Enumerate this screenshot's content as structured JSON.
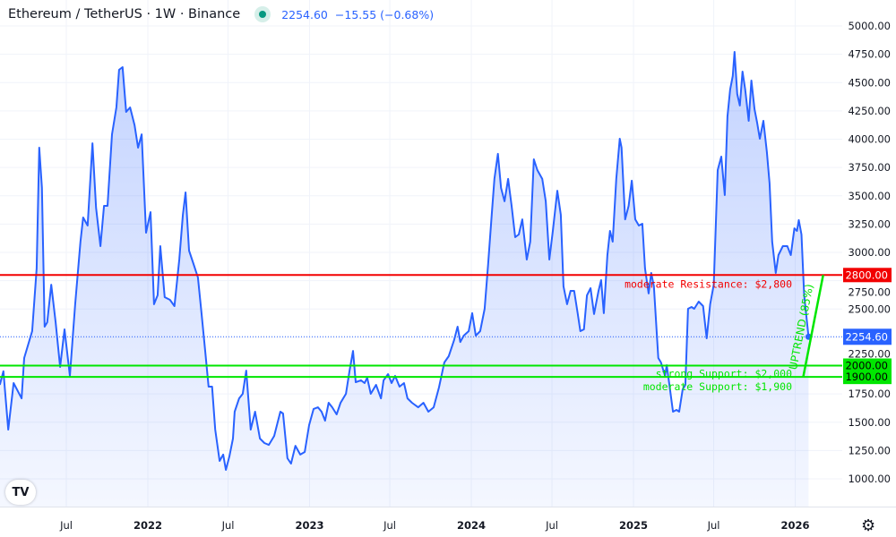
{
  "header": {
    "symbol_title": "Ethereum / TetherUS · 1W · Binance",
    "market_status": "open",
    "last_price": "2254.60",
    "change": "−15.55",
    "change_pct": "(−0.68%)"
  },
  "logo_text": "TV",
  "settings_icon": "gear-icon",
  "colors": {
    "line": "#2962ff",
    "resistance": "#f20000",
    "support": "#00e600",
    "trend": "#00e600",
    "price_label": "#2962ff"
  },
  "chart_data": {
    "type": "area",
    "y_axis": {
      "min": 1000,
      "max": 5000,
      "ticks": [
        "1000.00",
        "1250.00",
        "1500.00",
        "1750.00",
        "2000.00",
        "2250.00",
        "2500.00",
        "2750.00",
        "3000.00",
        "3250.00",
        "3500.00",
        "3750.00",
        "4000.00",
        "4250.00",
        "4500.00",
        "4750.00",
        "5000.00"
      ]
    },
    "x_axis": {
      "ticks": [
        {
          "label": "Jul",
          "date": "2021-07-01"
        },
        {
          "label": "2022",
          "date": "2022-01-01"
        },
        {
          "label": "Jul",
          "date": "2022-07-01"
        },
        {
          "label": "2023",
          "date": "2023-01-01"
        },
        {
          "label": "Jul",
          "date": "2023-07-01"
        },
        {
          "label": "2024",
          "date": "2024-01-01"
        },
        {
          "label": "Jul",
          "date": "2024-07-01"
        },
        {
          "label": "2025",
          "date": "2025-01-01"
        },
        {
          "label": "Jul",
          "date": "2025-07-01"
        },
        {
          "label": "2026",
          "date": "2026-01-01"
        }
      ]
    },
    "grid": true,
    "series": [
      {
        "points": [
          [
            "2021-02-01",
            1830
          ],
          [
            "2021-02-09",
            1950
          ],
          [
            "2021-02-20",
            1435
          ],
          [
            "2021-03-04",
            1846
          ],
          [
            "2021-03-22",
            1711
          ],
          [
            "2021-03-28",
            2067
          ],
          [
            "2021-04-15",
            2304
          ],
          [
            "2021-04-25",
            2858
          ],
          [
            "2021-05-01",
            3925
          ],
          [
            "2021-05-07",
            3569
          ],
          [
            "2021-05-13",
            2344
          ],
          [
            "2021-05-19",
            2383
          ],
          [
            "2021-05-28",
            2715
          ],
          [
            "2021-06-07",
            2383
          ],
          [
            "2021-06-17",
            1988
          ],
          [
            "2021-06-27",
            2320
          ],
          [
            "2021-07-09",
            1909
          ],
          [
            "2021-07-21",
            2542
          ],
          [
            "2021-08-02",
            3095
          ],
          [
            "2021-08-08",
            3308
          ],
          [
            "2021-08-18",
            3237
          ],
          [
            "2021-08-29",
            3964
          ],
          [
            "2021-09-06",
            3395
          ],
          [
            "2021-09-16",
            3055
          ],
          [
            "2021-09-24",
            3411
          ],
          [
            "2021-10-02",
            3411
          ],
          [
            "2021-10-12",
            4043
          ],
          [
            "2021-10-22",
            4281
          ],
          [
            "2021-10-28",
            4613
          ],
          [
            "2021-11-05",
            4636
          ],
          [
            "2021-11-13",
            4241
          ],
          [
            "2021-11-22",
            4281
          ],
          [
            "2021-12-02",
            4123
          ],
          [
            "2021-12-10",
            3925
          ],
          [
            "2021-12-18",
            4043
          ],
          [
            "2021-12-28",
            3174
          ],
          [
            "2022-01-07",
            3356
          ],
          [
            "2022-01-15",
            2542
          ],
          [
            "2022-01-23",
            2621
          ],
          [
            "2022-01-29",
            3055
          ],
          [
            "2022-02-08",
            2605
          ],
          [
            "2022-02-20",
            2581
          ],
          [
            "2022-03-02",
            2526
          ],
          [
            "2022-03-13",
            2937
          ],
          [
            "2022-03-21",
            3332
          ],
          [
            "2022-03-27",
            3530
          ],
          [
            "2022-04-04",
            3016
          ],
          [
            "2022-04-14",
            2897
          ],
          [
            "2022-04-24",
            2779
          ],
          [
            "2022-05-02",
            2463
          ],
          [
            "2022-05-10",
            2146
          ],
          [
            "2022-05-18",
            1814
          ],
          [
            "2022-05-26",
            1814
          ],
          [
            "2022-06-02",
            1435
          ],
          [
            "2022-06-12",
            1158
          ],
          [
            "2022-06-20",
            1214
          ],
          [
            "2022-06-26",
            1079
          ],
          [
            "2022-07-04",
            1198
          ],
          [
            "2022-07-12",
            1356
          ],
          [
            "2022-07-16",
            1593
          ],
          [
            "2022-07-26",
            1711
          ],
          [
            "2022-08-03",
            1751
          ],
          [
            "2022-08-11",
            1956
          ],
          [
            "2022-08-21",
            1435
          ],
          [
            "2022-08-31",
            1593
          ],
          [
            "2022-09-11",
            1356
          ],
          [
            "2022-09-21",
            1316
          ],
          [
            "2022-10-01",
            1300
          ],
          [
            "2022-10-13",
            1379
          ],
          [
            "2022-10-27",
            1593
          ],
          [
            "2022-11-02",
            1577
          ],
          [
            "2022-11-12",
            1182
          ],
          [
            "2022-11-20",
            1134
          ],
          [
            "2022-11-30",
            1292
          ],
          [
            "2022-12-11",
            1214
          ],
          [
            "2022-12-21",
            1237
          ],
          [
            "2022-12-31",
            1474
          ],
          [
            "2023-01-10",
            1617
          ],
          [
            "2023-01-20",
            1632
          ],
          [
            "2023-01-28",
            1593
          ],
          [
            "2023-02-05",
            1514
          ],
          [
            "2023-02-13",
            1672
          ],
          [
            "2023-02-21",
            1632
          ],
          [
            "2023-03-03",
            1569
          ],
          [
            "2023-03-12",
            1672
          ],
          [
            "2023-03-24",
            1751
          ],
          [
            "2023-04-01",
            1949
          ],
          [
            "2023-04-09",
            2130
          ],
          [
            "2023-04-15",
            1854
          ],
          [
            "2023-04-27",
            1870
          ],
          [
            "2023-05-05",
            1846
          ],
          [
            "2023-05-11",
            1893
          ],
          [
            "2023-05-19",
            1751
          ],
          [
            "2023-05-31",
            1830
          ],
          [
            "2023-06-11",
            1711
          ],
          [
            "2023-06-17",
            1870
          ],
          [
            "2023-06-27",
            1925
          ],
          [
            "2023-07-05",
            1846
          ],
          [
            "2023-07-13",
            1909
          ],
          [
            "2023-07-23",
            1814
          ],
          [
            "2023-08-02",
            1846
          ],
          [
            "2023-08-10",
            1711
          ],
          [
            "2023-08-20",
            1672
          ],
          [
            "2023-09-03",
            1632
          ],
          [
            "2023-09-15",
            1672
          ],
          [
            "2023-09-26",
            1593
          ],
          [
            "2023-10-08",
            1632
          ],
          [
            "2023-10-20",
            1806
          ],
          [
            "2023-11-01",
            2028
          ],
          [
            "2023-11-11",
            2083
          ],
          [
            "2023-11-23",
            2225
          ],
          [
            "2023-12-01",
            2344
          ],
          [
            "2023-12-07",
            2209
          ],
          [
            "2023-12-15",
            2265
          ],
          [
            "2023-12-26",
            2304
          ],
          [
            "2024-01-03",
            2463
          ],
          [
            "2024-01-11",
            2265
          ],
          [
            "2024-01-21",
            2304
          ],
          [
            "2024-01-31",
            2502
          ],
          [
            "2024-02-08",
            2897
          ],
          [
            "2024-02-16",
            3332
          ],
          [
            "2024-02-22",
            3649
          ],
          [
            "2024-03-01",
            3870
          ],
          [
            "2024-03-08",
            3569
          ],
          [
            "2024-03-16",
            3451
          ],
          [
            "2024-03-24",
            3649
          ],
          [
            "2024-04-01",
            3411
          ],
          [
            "2024-04-09",
            3134
          ],
          [
            "2024-04-17",
            3158
          ],
          [
            "2024-04-25",
            3292
          ],
          [
            "2024-05-05",
            2937
          ],
          [
            "2024-05-13",
            3095
          ],
          [
            "2024-05-21",
            3822
          ],
          [
            "2024-05-29",
            3727
          ],
          [
            "2024-06-09",
            3649
          ],
          [
            "2024-06-17",
            3451
          ],
          [
            "2024-06-25",
            2937
          ],
          [
            "2024-07-03",
            3190
          ],
          [
            "2024-07-13",
            3545
          ],
          [
            "2024-07-21",
            3332
          ],
          [
            "2024-07-27",
            2700
          ],
          [
            "2024-08-04",
            2542
          ],
          [
            "2024-08-12",
            2660
          ],
          [
            "2024-08-20",
            2660
          ],
          [
            "2024-08-28",
            2463
          ],
          [
            "2024-09-03",
            2304
          ],
          [
            "2024-09-11",
            2320
          ],
          [
            "2024-09-18",
            2621
          ],
          [
            "2024-09-26",
            2684
          ],
          [
            "2024-10-04",
            2455
          ],
          [
            "2024-10-14",
            2660
          ],
          [
            "2024-10-20",
            2755
          ],
          [
            "2024-10-26",
            2463
          ],
          [
            "2024-11-03",
            2976
          ],
          [
            "2024-11-09",
            3190
          ],
          [
            "2024-11-15",
            3095
          ],
          [
            "2024-11-23",
            3649
          ],
          [
            "2024-12-01",
            4004
          ],
          [
            "2024-12-05",
            3925
          ],
          [
            "2024-12-13",
            3292
          ],
          [
            "2024-12-21",
            3411
          ],
          [
            "2024-12-28",
            3633
          ],
          [
            "2025-01-05",
            3292
          ],
          [
            "2025-01-13",
            3237
          ],
          [
            "2025-01-21",
            3253
          ],
          [
            "2025-01-27",
            2858
          ],
          [
            "2025-02-04",
            2637
          ],
          [
            "2025-02-10",
            2818
          ],
          [
            "2025-02-16",
            2700
          ],
          [
            "2025-02-26",
            2067
          ],
          [
            "2025-03-04",
            2028
          ],
          [
            "2025-03-13",
            1909
          ],
          [
            "2025-03-17",
            2004
          ],
          [
            "2025-03-23",
            1830
          ],
          [
            "2025-03-31",
            1593
          ],
          [
            "2025-04-08",
            1609
          ],
          [
            "2025-04-14",
            1593
          ],
          [
            "2025-04-22",
            1790
          ],
          [
            "2025-04-28",
            1830
          ],
          [
            "2025-05-04",
            2502
          ],
          [
            "2025-05-12",
            2518
          ],
          [
            "2025-05-18",
            2502
          ],
          [
            "2025-05-28",
            2565
          ],
          [
            "2025-06-07",
            2526
          ],
          [
            "2025-06-15",
            2241
          ],
          [
            "2025-06-23",
            2542
          ],
          [
            "2025-07-01",
            2715
          ],
          [
            "2025-07-10",
            3727
          ],
          [
            "2025-07-18",
            3846
          ],
          [
            "2025-07-26",
            3506
          ],
          [
            "2025-08-01",
            4201
          ],
          [
            "2025-08-07",
            4439
          ],
          [
            "2025-08-13",
            4557
          ],
          [
            "2025-08-17",
            4771
          ],
          [
            "2025-08-23",
            4399
          ],
          [
            "2025-08-29",
            4297
          ],
          [
            "2025-09-04",
            4597
          ],
          [
            "2025-09-10",
            4439
          ],
          [
            "2025-09-18",
            4162
          ],
          [
            "2025-09-24",
            4518
          ],
          [
            "2025-10-01",
            4265
          ],
          [
            "2025-10-07",
            4146
          ],
          [
            "2025-10-13",
            4004
          ],
          [
            "2025-10-21",
            4162
          ],
          [
            "2025-10-29",
            3885
          ],
          [
            "2025-11-04",
            3609
          ],
          [
            "2025-11-10",
            3095
          ],
          [
            "2025-11-18",
            2818
          ],
          [
            "2025-11-24",
            2976
          ],
          [
            "2025-12-04",
            3055
          ],
          [
            "2025-12-14",
            3055
          ],
          [
            "2025-12-22",
            2976
          ],
          [
            "2025-12-30",
            3213
          ],
          [
            "2026-01-05",
            3190
          ],
          [
            "2026-01-09",
            3285
          ],
          [
            "2026-01-15",
            3158
          ],
          [
            "2026-01-21",
            2621
          ],
          [
            "2026-01-31",
            2254.6
          ]
        ]
      }
    ],
    "levels": [
      {
        "price": 2800,
        "label": "moderate Resistance: $2,800",
        "axis_label": "2800.00",
        "type": "resistance"
      },
      {
        "price": 2000,
        "label": "strong Support: $2,000",
        "axis_label": "2000.00",
        "type": "support"
      },
      {
        "price": 1900,
        "label": "moderate Support: $1,900",
        "axis_label": "1900.00",
        "type": "support"
      }
    ],
    "trendline": {
      "label": "UPTREND (85%)",
      "from": [
        "2026-01-19",
        1900
      ],
      "to": [
        "2026-03-05",
        2800
      ]
    },
    "last_price_label": "2254.60"
  }
}
